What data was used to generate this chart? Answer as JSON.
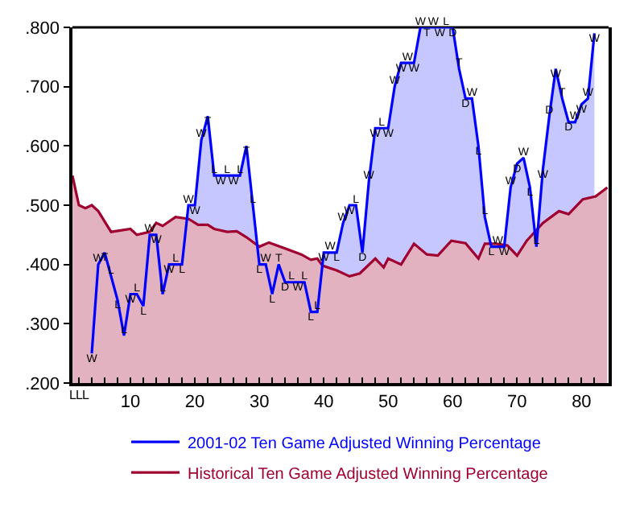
{
  "chart_data": {
    "type": "area",
    "xlim": [
      1,
      84.2
    ],
    "ylim": [
      0.2,
      0.8
    ],
    "xticks": [
      {
        "value": 2,
        "label": null
      },
      {
        "value": 4,
        "label": null
      },
      {
        "value": 6,
        "label": null
      },
      {
        "value": 8,
        "label": null
      },
      10,
      {
        "value": 12,
        "label": null
      },
      {
        "value": 14,
        "label": null
      },
      {
        "value": 16,
        "label": null
      },
      {
        "value": 18,
        "label": null
      },
      20,
      {
        "value": 22,
        "label": null
      },
      {
        "value": 24,
        "label": null
      },
      {
        "value": 26,
        "label": null
      },
      {
        "value": 28,
        "label": null
      },
      30,
      {
        "value": 32,
        "label": null
      },
      {
        "value": 34,
        "label": null
      },
      {
        "value": 36,
        "label": null
      },
      {
        "value": 38,
        "label": null
      },
      40,
      {
        "value": 42,
        "label": null
      },
      {
        "value": 44,
        "label": null
      },
      {
        "value": 46,
        "label": null
      },
      {
        "value": 48,
        "label": null
      },
      50,
      {
        "value": 52,
        "label": null
      },
      {
        "value": 54,
        "label": null
      },
      {
        "value": 56,
        "label": null
      },
      {
        "value": 58,
        "label": null
      },
      60,
      {
        "value": 62,
        "label": null
      },
      {
        "value": 64,
        "label": null
      },
      {
        "value": 66,
        "label": null
      },
      {
        "value": 68,
        "label": null
      },
      70,
      {
        "value": 72,
        "label": null
      },
      {
        "value": 74,
        "label": null
      },
      {
        "value": 76,
        "label": null
      },
      {
        "value": 78,
        "label": null
      },
      80,
      {
        "value": 82,
        "label": null
      }
    ],
    "yticks": [
      {
        "value": 0.2,
        "label": ".200"
      },
      {
        "value": 0.3,
        "label": ".300"
      },
      {
        "value": 0.4,
        "label": ".400"
      },
      {
        "value": 0.5,
        "label": ".500"
      },
      {
        "value": 0.6,
        "label": ".600"
      },
      {
        "value": 0.7,
        "label": ".700"
      },
      {
        "value": 0.8,
        "label": ".800"
      }
    ],
    "grid": false,
    "legend": "bottom",
    "marker": "none",
    "line_style": "solid",
    "series": [
      {
        "name": "2001-02 Ten Game Adjusted Winning Percentage",
        "color": "#0000ff",
        "x": [
          4,
          5,
          6,
          7,
          8,
          9,
          10,
          11,
          12,
          13,
          14,
          15,
          16,
          17,
          18,
          19,
          20,
          21,
          22,
          23,
          24,
          25,
          26,
          27,
          28,
          29,
          30,
          31,
          32,
          33,
          34,
          35,
          36,
          37,
          38,
          39,
          40,
          41,
          42,
          43,
          44,
          45,
          46,
          47,
          48,
          49,
          50,
          51,
          52,
          53,
          54,
          55,
          56,
          57,
          58,
          59,
          60,
          61,
          62,
          63,
          64,
          65,
          66,
          67,
          68,
          69,
          70,
          71,
          72,
          73,
          74,
          75,
          76,
          77,
          78,
          79,
          80,
          81,
          82
        ],
        "values": [
          0.25,
          0.4,
          0.42,
          0.38,
          0.34,
          0.28,
          0.35,
          0.35,
          0.33,
          0.45,
          0.45,
          0.35,
          0.4,
          0.4,
          0.4,
          0.5,
          0.5,
          0.61,
          0.65,
          0.55,
          0.55,
          0.55,
          0.55,
          0.55,
          0.6,
          0.5,
          0.4,
          0.4,
          0.35,
          0.4,
          0.37,
          0.37,
          0.37,
          0.37,
          0.32,
          0.32,
          0.42,
          0.42,
          0.42,
          0.47,
          0.5,
          0.5,
          0.42,
          0.54,
          0.63,
          0.63,
          0.63,
          0.7,
          0.74,
          0.74,
          0.74,
          0.8,
          0.8,
          0.8,
          0.8,
          0.8,
          0.8,
          0.73,
          0.68,
          0.68,
          0.6,
          0.48,
          0.43,
          0.43,
          0.43,
          0.53,
          0.57,
          0.58,
          0.53,
          0.43,
          0.56,
          0.65,
          0.73,
          0.68,
          0.64,
          0.64,
          0.67,
          0.68,
          0.79
        ],
        "value_labels": [
          "W",
          "W",
          "T",
          "L",
          "L",
          "L",
          "W",
          "L",
          "L",
          "W",
          "W",
          "L",
          "W",
          "L",
          "L",
          "W",
          "W",
          "W",
          "T",
          "L",
          "W",
          "L",
          "W",
          "L",
          "T",
          "L",
          "L",
          "W",
          "L",
          "T",
          "D",
          "L",
          "W",
          "L",
          "L",
          "L",
          "W",
          "W",
          "L",
          "W",
          "W",
          "L",
          "D",
          "W",
          "W",
          "L",
          "W",
          "W",
          "W",
          "W",
          "W",
          "W",
          "T",
          "W",
          "W",
          "L",
          "D",
          "T",
          "D",
          "W",
          "L",
          "L",
          "L",
          "W",
          "W",
          "W",
          "D",
          "W",
          "L",
          "L",
          "W",
          "D",
          "W",
          "T",
          "D",
          "W",
          "W",
          "W",
          "W"
        ]
      },
      {
        "name": "Historical Ten Game Adjusted Winning Percentage",
        "color": "#a00030",
        "x": [
          1,
          1.2,
          2,
          3,
          4,
          5,
          7,
          10,
          11,
          13,
          14,
          15,
          17,
          19,
          20.5,
          22,
          23,
          25,
          26.5,
          28,
          30,
          31.5,
          34,
          36.5,
          38,
          39,
          39.8,
          42,
          44,
          45.6,
          48,
          49.3,
          50,
          52,
          54,
          56,
          57.7,
          59.8,
          62,
          64,
          65,
          66.8,
          68.5,
          70,
          71.5,
          74,
          76.5,
          78,
          80.2,
          82.2,
          84
        ],
        "values": [
          0.55,
          0.54,
          0.5,
          0.495,
          0.5,
          0.49,
          0.455,
          0.46,
          0.45,
          0.455,
          0.47,
          0.465,
          0.48,
          0.477,
          0.467,
          0.467,
          0.46,
          0.455,
          0.456,
          0.446,
          0.43,
          0.437,
          0.427,
          0.417,
          0.408,
          0.41,
          0.398,
          0.39,
          0.38,
          0.385,
          0.41,
          0.395,
          0.41,
          0.4,
          0.435,
          0.417,
          0.415,
          0.44,
          0.436,
          0.41,
          0.435,
          0.435,
          0.432,
          0.415,
          0.44,
          0.47,
          0.49,
          0.485,
          0.51,
          0.515,
          0.53
        ]
      }
    ],
    "annotations": [
      {
        "text": "L",
        "x": 1,
        "y": 0.2
      },
      {
        "text": "L",
        "x": 2,
        "y": 0.2
      },
      {
        "text": "L",
        "x": 3,
        "y": 0.2
      }
    ]
  }
}
